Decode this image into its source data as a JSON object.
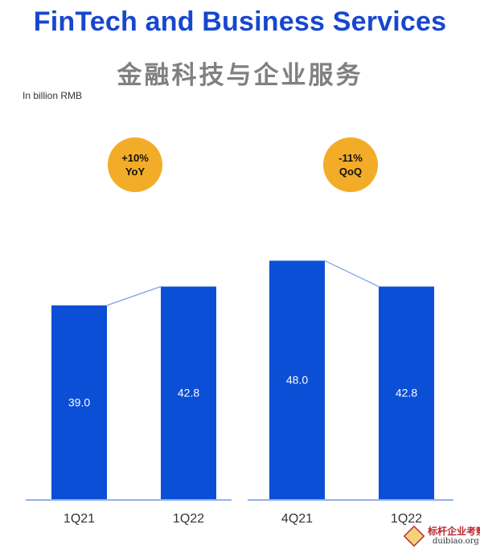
{
  "header": {
    "title": "FinTech and Business Services",
    "subtitle": "金融科技与企业服务",
    "unit_note": "In billion RMB"
  },
  "colors": {
    "bar": "#0a4fd6",
    "badge": "#f3ac28",
    "connector": "#6f9ae6",
    "title": "#1747d0"
  },
  "chart_data": [
    {
      "type": "bar",
      "title": "",
      "categories": [
        "1Q21",
        "1Q22"
      ],
      "values": [
        39.0,
        42.8
      ],
      "value_labels": [
        "39.0",
        "42.8"
      ],
      "badge": {
        "line1": "+10%",
        "line2": "YoY"
      },
      "ylim": [
        0,
        55
      ]
    },
    {
      "type": "bar",
      "title": "",
      "categories": [
        "4Q21",
        "1Q22"
      ],
      "values": [
        48.0,
        42.8
      ],
      "value_labels": [
        "48.0",
        "42.8"
      ],
      "badge": {
        "line1": "-11%",
        "line2": "QoQ"
      },
      "ylim": [
        0,
        55
      ]
    }
  ],
  "watermark": {
    "line1": "标杆企业考察",
    "line2": "duibiao.org"
  }
}
